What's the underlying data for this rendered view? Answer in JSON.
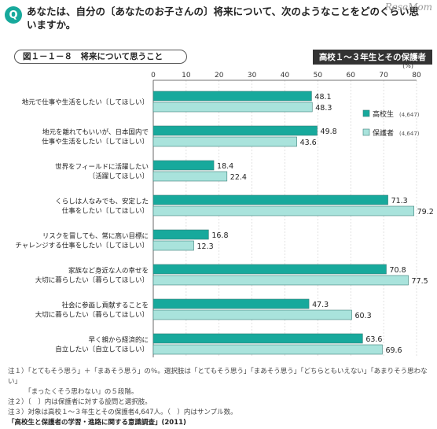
{
  "header": {
    "q_badge": "Q",
    "question": "あなたは、自分の〔あなたのお子さんの〕将来について、次のようなことをどのくらい思いますか。",
    "watermark": "ReseMom",
    "figure_title": "図１－１－８　将来について思うこと",
    "respondents": "高校１～３年生とその保護者"
  },
  "chart_data": {
    "type": "bar",
    "orientation": "horizontal",
    "unit_label": "(%)",
    "xlim": [
      0,
      80
    ],
    "x_ticks": [
      "0",
      "10",
      "20",
      "30",
      "40",
      "50",
      "60",
      "70",
      "80"
    ],
    "grid": true,
    "legend_position": "right",
    "categories": [
      [
        "地元で仕事や生活をしたい〔してほしい〕"
      ],
      [
        "地元を離れてもいいが、日本国内で",
        "仕事や生活をしたい〔してほしい〕"
      ],
      [
        "世界をフィールドに活躍したい",
        "〔活躍してほしい〕"
      ],
      [
        "くらしは人なみでも、安定した",
        "仕事をしたい〔してほしい〕"
      ],
      [
        "リスクを冒しても、常に高い目標に",
        "チャレンジする仕事をしたい〔してほしい〕"
      ],
      [
        "家族など身近な人の幸せを",
        "大切に暮らしたい〔暮らしてほしい〕"
      ],
      [
        "社会に参画し貢献することを",
        "大切に暮らしたい〔暮らしてほしい〕"
      ],
      [
        "早く親から経済的に",
        "自立したい〔自立してほしい〕"
      ]
    ],
    "series": [
      {
        "name": "高校生",
        "n": "(4,647)",
        "color": "#17a99c",
        "values": [
          48.1,
          49.8,
          18.4,
          71.3,
          16.8,
          70.8,
          47.3,
          63.6
        ]
      },
      {
        "name": "保護者",
        "n": "(4,647)",
        "color": "#a9e3dc",
        "values": [
          48.3,
          43.6,
          22.4,
          79.2,
          12.3,
          77.5,
          60.3,
          69.6
        ]
      }
    ],
    "value_labels": [
      [
        "48.1",
        "49.8",
        "18.4",
        "71.3",
        "16.8",
        "70.8",
        "47.3",
        "63.6"
      ],
      [
        "48.3",
        "43.6",
        "22.4",
        "79.2",
        "12.3",
        "77.5",
        "60.3",
        "69.6"
      ]
    ]
  },
  "notes": [
    "注１）「とてもそう思う」＋「まあそう思う」の％。選択肢は「とてもそう思う」「まあそう思う」「どちらともいえない」「あまりそう思わない」",
    "　　　「まったくそう思わない」の５段階。",
    "注２）〔　〕内は保護者に対する設問と選択肢。",
    "注３）対象は高校１～３年生とその保護者4,647人。（　）内はサンプル数。"
  ],
  "source": "「高校生と保護者の学習・進路に関する意識調査」(2011)"
}
